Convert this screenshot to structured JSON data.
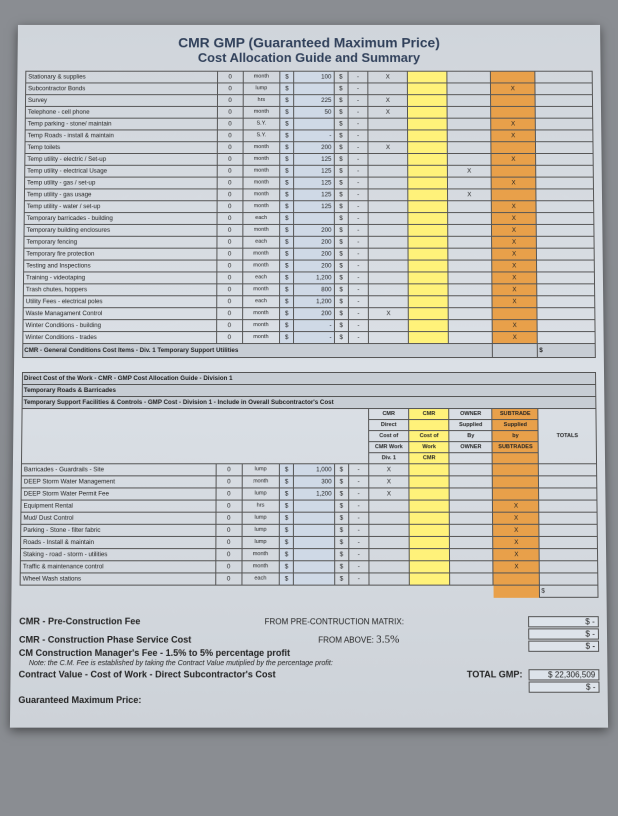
{
  "title1": "CMR GMP (Guaranteed Maximum Price)",
  "title2": "Cost Allocation Guide and Summary",
  "currency": "$",
  "dash": "-",
  "x": "X",
  "colors": {
    "rate_bg": "#cfd9e6",
    "cmr_highlight": "#fff27a",
    "subtrade_bg": "#e8a04a",
    "paper_bg": "#d8dde3"
  },
  "section1": {
    "rows": [
      {
        "desc": "Stationary & supplies",
        "qty": "0",
        "unit": "month",
        "rate": "100",
        "cmr1": "X",
        "sub": ""
      },
      {
        "desc": "Subcontractor Bonds",
        "qty": "0",
        "unit": "lump",
        "rate": "",
        "cmr1": "",
        "sub": "X"
      },
      {
        "desc": "Survey",
        "qty": "0",
        "unit": "hrs",
        "rate": "225",
        "cmr1": "X",
        "sub": ""
      },
      {
        "desc": "Telephone - cell phone",
        "qty": "0",
        "unit": "month",
        "rate": "50",
        "cmr1": "X",
        "sub": ""
      },
      {
        "desc": "Temp parking - stone/ maintain",
        "qty": "0",
        "unit": "S.Y.",
        "rate": "",
        "cmr1": "",
        "sub": "X"
      },
      {
        "desc": "Temp Roads - install & maintain",
        "qty": "0",
        "unit": "S.Y.",
        "rate": "-",
        "cmr1": "",
        "sub": "X"
      },
      {
        "desc": "Temp toilets",
        "qty": "0",
        "unit": "month",
        "rate": "200",
        "cmr1": "X",
        "sub": ""
      },
      {
        "desc": "Temp utility - electric / Set-up",
        "qty": "0",
        "unit": "month",
        "rate": "125",
        "cmr1": "",
        "sub": "X"
      },
      {
        "desc": "Temp utility - electrical Usage",
        "qty": "0",
        "unit": "month",
        "rate": "125",
        "cmr1": "",
        "own": "X",
        "sub": ""
      },
      {
        "desc": "Temp utility - gas / set-up",
        "qty": "0",
        "unit": "month",
        "rate": "125",
        "cmr1": "",
        "sub": "X"
      },
      {
        "desc": "Temp utility - gas usage",
        "qty": "0",
        "unit": "month",
        "rate": "125",
        "cmr1": "",
        "own": "X",
        "sub": ""
      },
      {
        "desc": "Temp utility - water / set-up",
        "qty": "0",
        "unit": "month",
        "rate": "125",
        "cmr1": "",
        "sub": "X"
      },
      {
        "desc": "Temporary barricades - building",
        "qty": "0",
        "unit": "each",
        "rate": "",
        "cmr1": "",
        "sub": "X"
      },
      {
        "desc": "Temporary building enclosures",
        "qty": "0",
        "unit": "month",
        "rate": "200",
        "cmr1": "",
        "sub": "X"
      },
      {
        "desc": "Temporary fencing",
        "qty": "0",
        "unit": "each",
        "rate": "200",
        "cmr1": "",
        "sub": "X"
      },
      {
        "desc": "Temporary fire protection",
        "qty": "0",
        "unit": "month",
        "rate": "200",
        "cmr1": "",
        "sub": "X"
      },
      {
        "desc": "Testing and Inspections",
        "qty": "0",
        "unit": "month",
        "rate": "200",
        "cmr1": "",
        "sub": "X"
      },
      {
        "desc": "Training - videotaping",
        "qty": "0",
        "unit": "each",
        "rate": "1,200",
        "cmr1": "",
        "sub": "X"
      },
      {
        "desc": "Trash chutes, hoppers",
        "qty": "0",
        "unit": "month",
        "rate": "800",
        "cmr1": "",
        "sub": "X"
      },
      {
        "desc": "Utility Fees - electrical poles",
        "qty": "0",
        "unit": "each",
        "rate": "1,200",
        "cmr1": "",
        "sub": "X"
      },
      {
        "desc": "Waste Managament Control",
        "qty": "0",
        "unit": "month",
        "rate": "200",
        "cmr1": "X",
        "sub": ""
      },
      {
        "desc": "Winter Conditions - building",
        "qty": "0",
        "unit": "month",
        "rate": "-",
        "cmr1": "",
        "sub": "X"
      },
      {
        "desc": "Winter Conditions - trades",
        "qty": "0",
        "unit": "month",
        "rate": "-",
        "cmr1": "",
        "sub": "X"
      }
    ],
    "summary": "CMR - General Conditions Cost Items - Div. 1 Temporary Support Utilities"
  },
  "section2": {
    "head1": "Direct Cost of the Work - CMR - GMP Cost Allocation Guide - Division 1",
    "head2": "Temporary Roads & Barricades",
    "head3": "Temporary Support Facilities & Controls - GMP Cost - Division 1 - Include in Overall Subcontractor's Cost",
    "cols": {
      "cmr1a": "CMR",
      "cmr1b": "Direct",
      "cmr1c": "Cost of",
      "cmr1d": "CMR Work",
      "cmr1e": "Div. 1",
      "cmr2a": "CMR",
      "cmr2c": "Cost of",
      "cmr2d": "Work",
      "cmr2e": "CMR",
      "own_a": "OWNER",
      "own_b": "Supplied",
      "own_c": "By",
      "own_d": "OWNER",
      "sub_a": "SUBTRADE",
      "sub_b": "Supplied",
      "sub_c": "by",
      "sub_d": "SUBTRADES",
      "tot": "TOTALS"
    },
    "rows": [
      {
        "desc": "Barricades - Guardrails - Site",
        "qty": "0",
        "unit": "lump",
        "rate": "1,000",
        "cmr1": "X",
        "sub": ""
      },
      {
        "desc": "DEEP Storm Water Management",
        "qty": "0",
        "unit": "month",
        "rate": "300",
        "cmr1": "X",
        "sub": ""
      },
      {
        "desc": "DEEP Storm Water Permit Fee",
        "qty": "0",
        "unit": "lump",
        "rate": "1,200",
        "cmr1": "X",
        "sub": ""
      },
      {
        "desc": "Equipment Rental",
        "qty": "0",
        "unit": "hrs",
        "rate": "",
        "cmr1": "",
        "sub": "X"
      },
      {
        "desc": "Mud/ Dust Control",
        "qty": "0",
        "unit": "lump",
        "rate": "",
        "cmr1": "",
        "sub": "X"
      },
      {
        "desc": "Parking - Stone - filter fabric",
        "qty": "0",
        "unit": "lump",
        "rate": "",
        "cmr1": "",
        "sub": "X"
      },
      {
        "desc": "Roads - Install & maintain",
        "qty": "0",
        "unit": "lump",
        "rate": "",
        "cmr1": "",
        "sub": "X"
      },
      {
        "desc": "Staking - road - storm - utilities",
        "qty": "0",
        "unit": "month",
        "rate": "",
        "cmr1": "",
        "sub": "X"
      },
      {
        "desc": "Traffic & maintenance control",
        "qty": "0",
        "unit": "month",
        "rate": "",
        "cmr1": "",
        "sub": "X"
      },
      {
        "desc": "Wheel Wash stations",
        "qty": "0",
        "unit": "each",
        "rate": "",
        "cmr1": "",
        "sub": ""
      }
    ]
  },
  "bottom": {
    "l1": "CMR - Pre-Construction Fee",
    "v1": "FROM PRE-CONTRUCTION MATRIX:",
    "l2": "CMR - Construction Phase Service Cost",
    "v2": "FROM ABOVE:",
    "l3": "CM Construction Manager's Fee - 1.5% to 5% percentage profit",
    "hand": "3.5%",
    "note": "Note: the C.M. Fee is established by taking the Contract Value mutiplied by the percentage profit:",
    "l4": "Contract Value - Cost of Work - Direct Subcontractor's Cost",
    "l4b": "TOTAL GMP:",
    "l5": "Guaranteed Maximum Price:",
    "grand": "22,306,509"
  }
}
